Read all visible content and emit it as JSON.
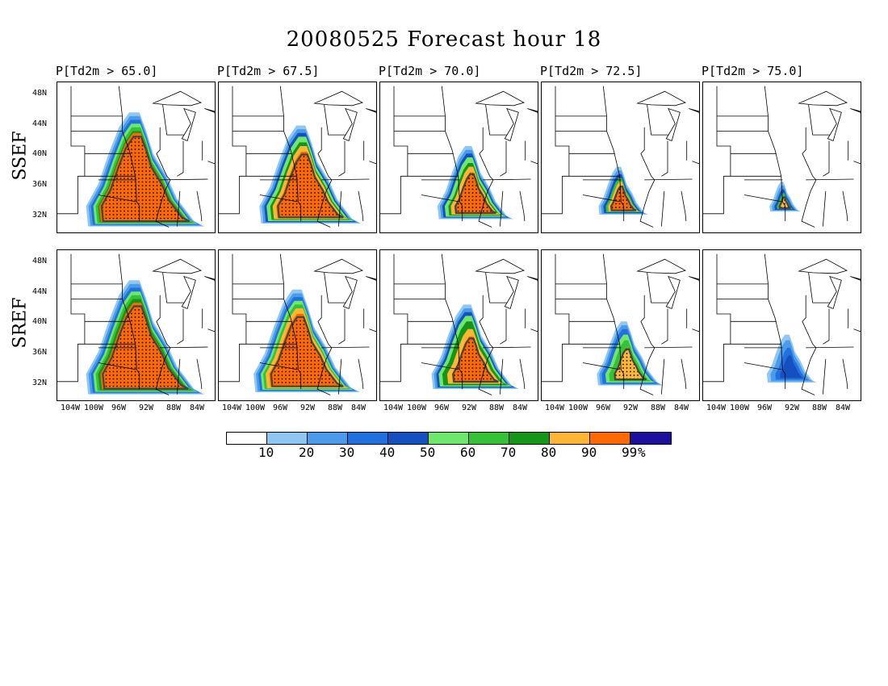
{
  "title": "20080525 Forecast hour 18",
  "columns": [
    {
      "label": "P[Td2m > 65.0]",
      "threshold": 65.0
    },
    {
      "label": "P[Td2m > 67.5]",
      "threshold": 67.5
    },
    {
      "label": "P[Td2m > 70.0]",
      "threshold": 70.0
    },
    {
      "label": "P[Td2m > 72.5]",
      "threshold": 72.5
    },
    {
      "label": "P[Td2m > 75.0]",
      "threshold": 75.0
    }
  ],
  "rows": [
    {
      "label": "SSEF"
    },
    {
      "label": "SREF"
    }
  ],
  "lat_labels": [
    "48N",
    "44N",
    "40N",
    "36N",
    "32N"
  ],
  "lon_labels": [
    "104W",
    "100W",
    "96W",
    "92W",
    "88W",
    "84W"
  ],
  "colorbar": {
    "colors": [
      "#ffffff",
      "#8fc7f2",
      "#4a9cea",
      "#2070e0",
      "#1450c0",
      "#6de86d",
      "#36c236",
      "#169616",
      "#ffb634",
      "#ff6a00",
      "#1e0fa0"
    ],
    "ticks": [
      "10",
      "20",
      "30",
      "40",
      "50",
      "60",
      "70",
      "80",
      "90",
      "99",
      "%"
    ]
  },
  "legend_meaning": {
    "stippling": "black dots",
    "contour": "dark gray outline"
  }
}
